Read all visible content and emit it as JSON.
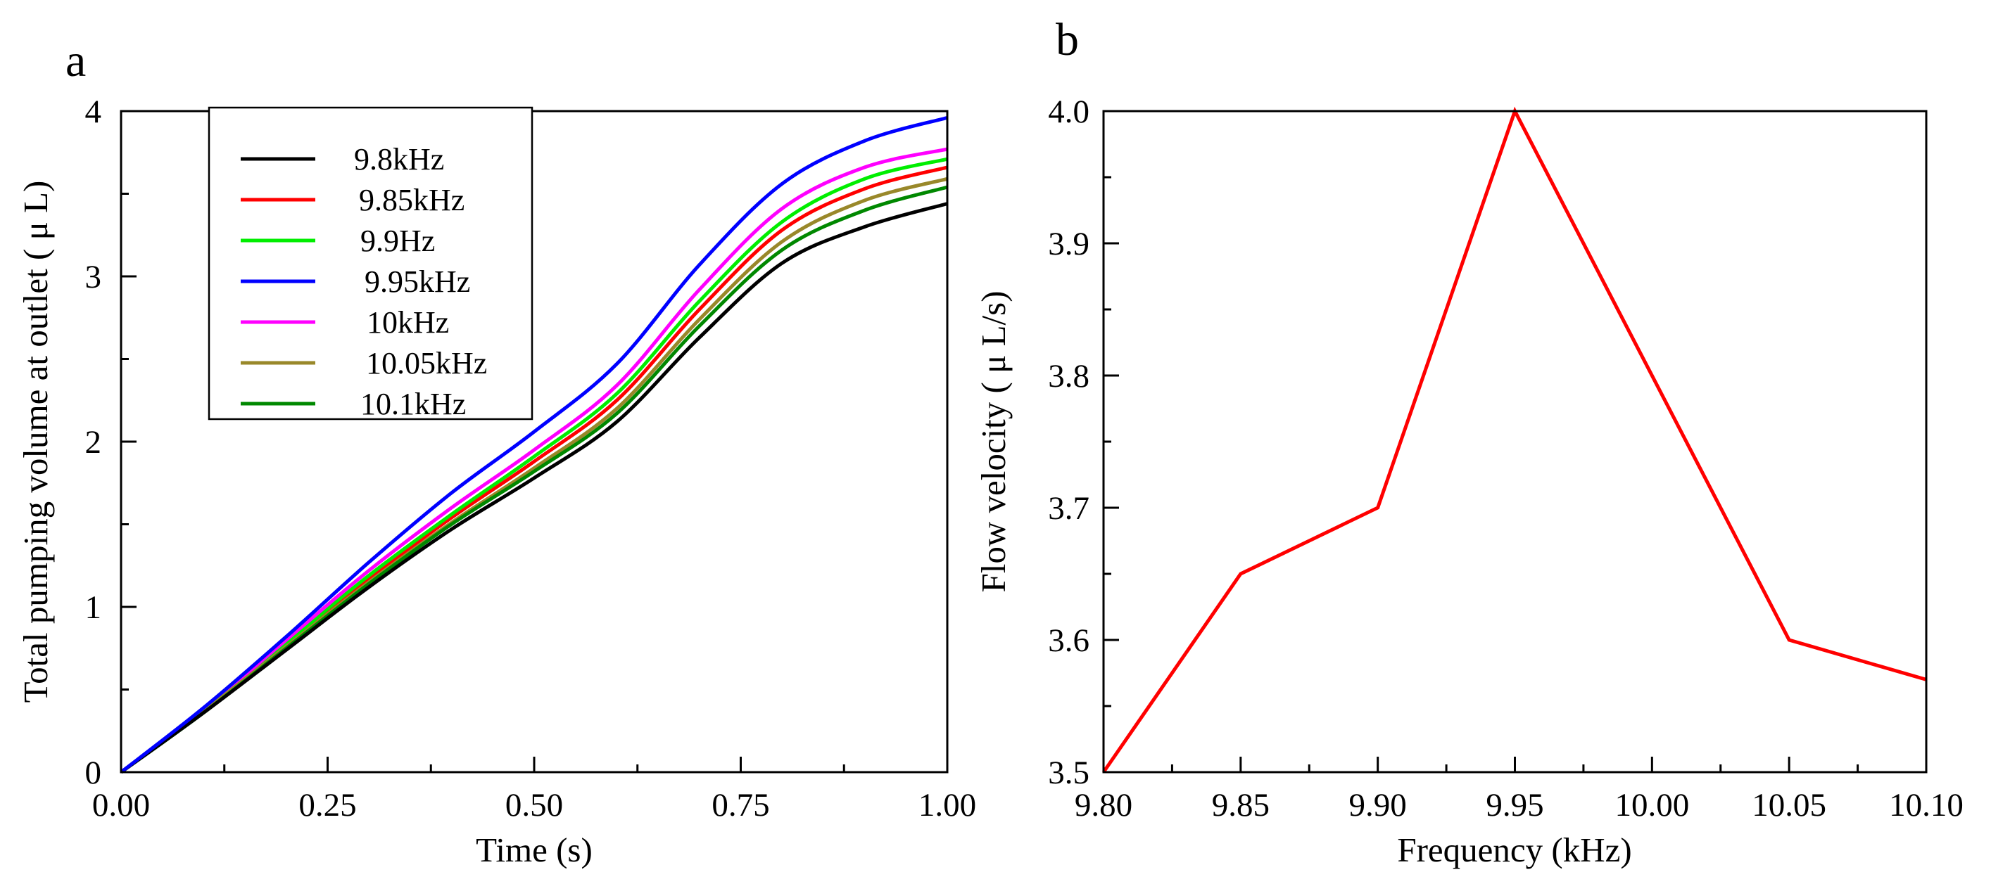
{
  "chart_data": [
    {
      "panel": "a",
      "type": "line",
      "title": "",
      "xlabel": "Time (s)",
      "ylabel": "Total pumping volume at outlet ( μ L)",
      "xlim": [
        0,
        1
      ],
      "ylim": [
        0,
        4
      ],
      "xticks": [
        0,
        0.25,
        0.5,
        0.75,
        1.0
      ],
      "xtick_labels": [
        "0.00",
        "0.25",
        "0.50",
        "0.75",
        "1.00"
      ],
      "yticks": [
        0,
        1,
        2,
        3,
        4
      ],
      "ytick_labels": [
        "0",
        "1",
        "2",
        "3",
        "4"
      ],
      "grid": false,
      "legend_position": "top-left",
      "x": [
        0,
        0.1,
        0.2,
        0.3,
        0.4,
        0.5,
        0.6,
        0.7,
        0.8,
        0.9,
        1.0
      ],
      "series": [
        {
          "name": "9.8kHz",
          "color": "#000000",
          "values": [
            0,
            0.36,
            0.74,
            1.12,
            1.47,
            1.78,
            2.12,
            2.63,
            3.08,
            3.3,
            3.44
          ]
        },
        {
          "name": "9.85kHz",
          "color": "#ff0000",
          "values": [
            0,
            0.37,
            0.77,
            1.17,
            1.54,
            1.88,
            2.25,
            2.8,
            3.28,
            3.53,
            3.66
          ]
        },
        {
          "name": "9.9Hz",
          "color": "#00ee00",
          "values": [
            0,
            0.37,
            0.78,
            1.19,
            1.56,
            1.91,
            2.29,
            2.85,
            3.33,
            3.59,
            3.71
          ]
        },
        {
          "name": "9.95kHz",
          "color": "#0000ff",
          "values": [
            0,
            0.39,
            0.82,
            1.27,
            1.69,
            2.06,
            2.47,
            3.07,
            3.56,
            3.82,
            3.96
          ]
        },
        {
          "name": "10kHz",
          "color": "#ff00ff",
          "values": [
            0,
            0.38,
            0.8,
            1.22,
            1.6,
            1.95,
            2.34,
            2.92,
            3.41,
            3.66,
            3.77
          ]
        },
        {
          "name": "10.05kHz",
          "color": "#99882a",
          "values": [
            0,
            0.37,
            0.76,
            1.15,
            1.51,
            1.84,
            2.2,
            2.74,
            3.21,
            3.46,
            3.59
          ]
        },
        {
          "name": "10.1kHz",
          "color": "#008800",
          "values": [
            0,
            0.36,
            0.75,
            1.14,
            1.5,
            1.82,
            2.17,
            2.7,
            3.16,
            3.4,
            3.54
          ]
        }
      ]
    },
    {
      "panel": "b",
      "type": "line",
      "title": "",
      "xlabel": "Frequency (kHz)",
      "ylabel": "Flow velocity ( μ L/s)",
      "xlim": [
        9.8,
        10.1
      ],
      "ylim": [
        3.5,
        4.0
      ],
      "xticks": [
        9.8,
        9.85,
        9.9,
        9.95,
        10.0,
        10.05,
        10.1
      ],
      "xtick_labels": [
        "9.80",
        "9.85",
        "9.90",
        "9.95",
        "10.00",
        "10.05",
        "10.10"
      ],
      "yticks": [
        3.5,
        3.6,
        3.7,
        3.8,
        3.9,
        4.0
      ],
      "ytick_labels": [
        "3.5",
        "3.6",
        "3.7",
        "3.8",
        "3.9",
        "4.0"
      ],
      "grid": false,
      "series": [
        {
          "name": "Flow velocity",
          "color": "#ff0000",
          "x": [
            9.8,
            9.85,
            9.9,
            9.95,
            10.0,
            10.05,
            10.1
          ],
          "values": [
            3.5,
            3.65,
            3.7,
            4.0,
            3.8,
            3.6,
            3.57
          ]
        }
      ]
    }
  ]
}
